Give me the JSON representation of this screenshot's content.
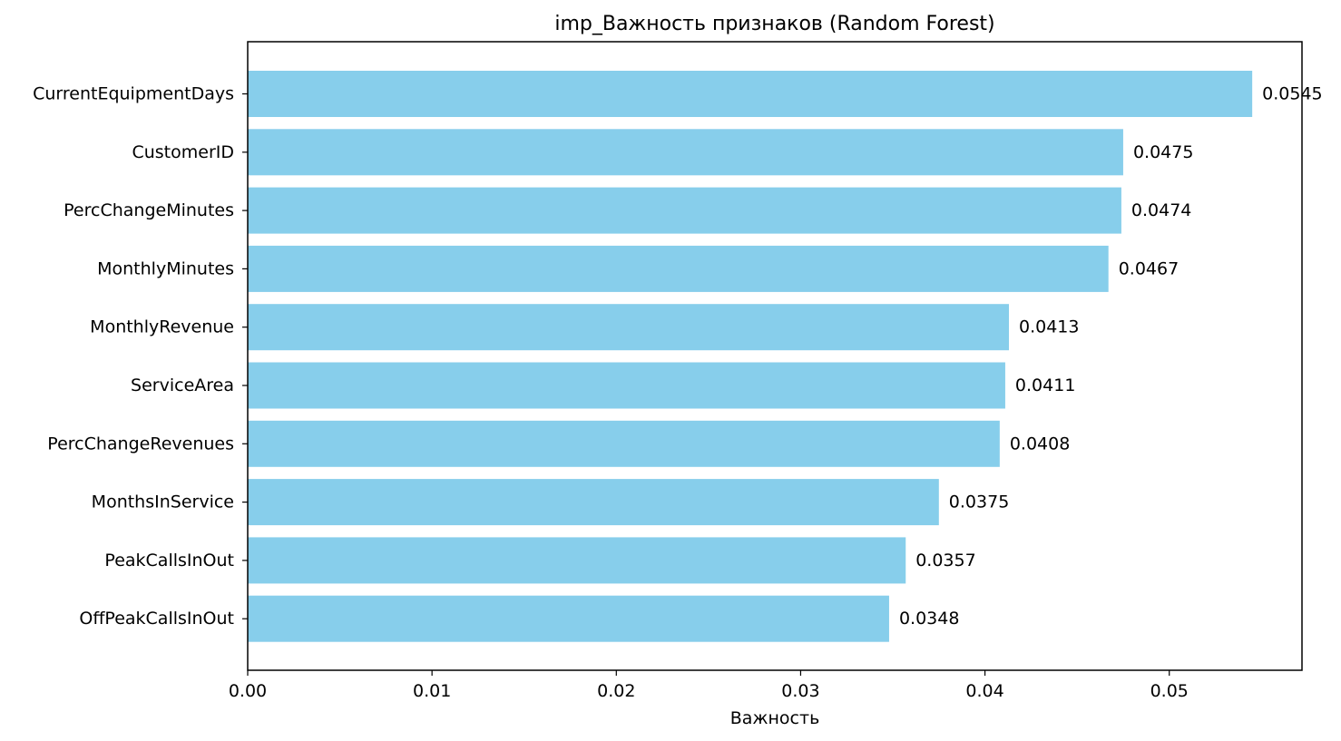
{
  "chart_data": {
    "type": "bar",
    "orientation": "horizontal",
    "title": "imp_Важность признаков (Random Forest)",
    "xlabel": "Важность",
    "ylabel": "",
    "xlim": [
      0,
      0.0572
    ],
    "xticks": [
      "0.00",
      "0.01",
      "0.02",
      "0.03",
      "0.04",
      "0.05"
    ],
    "categories": [
      "CurrentEquipmentDays",
      "CustomerID",
      "PercChangeMinutes",
      "MonthlyMinutes",
      "MonthlyRevenue",
      "ServiceArea",
      "PercChangeRevenues",
      "MonthsInService",
      "PeakCallsInOut",
      "OffPeakCallsInOut"
    ],
    "values": [
      0.0545,
      0.0475,
      0.0474,
      0.0467,
      0.0413,
      0.0411,
      0.0408,
      0.0375,
      0.0357,
      0.0348
    ],
    "value_labels": [
      "0.0545",
      "0.0475",
      "0.0474",
      "0.0467",
      "0.0413",
      "0.0411",
      "0.0408",
      "0.0375",
      "0.0357",
      "0.0348"
    ],
    "bar_color": "#87CEEB",
    "grid": false,
    "legend": "none"
  }
}
